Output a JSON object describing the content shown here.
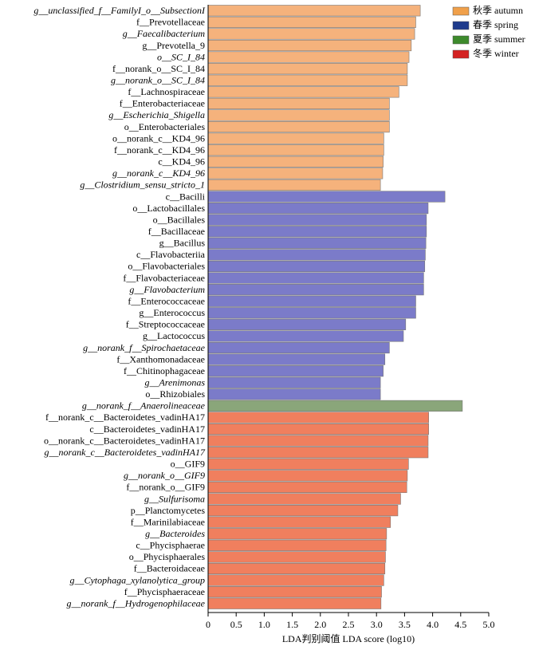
{
  "chart_data": {
    "type": "hbar",
    "xlabel": "LDA判别阈值 LDA score (log10)",
    "xlim": [
      0,
      5
    ],
    "xticks": [
      0,
      0.5,
      {
        "value": 1,
        "label": "1.0"
      },
      1.5,
      {
        "value": 2,
        "label": "2.0"
      },
      2.5,
      {
        "value": 3,
        "label": "3.0"
      },
      3.5,
      {
        "value": 4,
        "label": "4.0"
      },
      4.5,
      {
        "value": 5,
        "label": "5.0"
      }
    ],
    "series": [
      {
        "name": "秋季 autumn",
        "color": "#f5b27c",
        "legend_color": "#f0a04a",
        "categories": [
          "g__unclassified_f__FamilyI_o__SubsectionI",
          "f__Prevotellaceae",
          "g__Faecalibacterium",
          "g__Prevotella_9",
          "o__SC_I_84",
          "f__norank_o__SC_I_84",
          "g__norank_o__SC_I_84",
          "f__Lachnospiraceae",
          "f__Enterobacteriaceae",
          "g__Escherichia_Shigella",
          "o__Enterobacteriales",
          "o__norank_c__KD4_96",
          "f__norank_c__KD4_96",
          "c__KD4_96",
          "g__norank_c__KD4_96",
          "g__Clostridium_sensu_stricto_1"
        ],
        "italic": [
          true,
          false,
          true,
          false,
          true,
          false,
          true,
          false,
          false,
          true,
          false,
          false,
          false,
          false,
          true,
          true
        ],
        "values": [
          3.78,
          3.7,
          3.68,
          3.62,
          3.58,
          3.55,
          3.55,
          3.4,
          3.23,
          3.23,
          3.23,
          3.13,
          3.13,
          3.12,
          3.11,
          3.07
        ]
      },
      {
        "name": "春季 spring",
        "color": "#7b7bc9",
        "legend_color": "#1f3b8c",
        "categories": [
          "c__Bacilli",
          "o__Lactobacillales",
          "o__Bacillales",
          "f__Bacillaceae",
          "g__Bacillus",
          "c__Flavobacteriia",
          "o__Flavobacteriales",
          "f__Flavobacteriaceae",
          "g__Flavobacterium",
          "f__Enterococcaceae",
          "g__Enterococcus",
          "f__Streptococcaceae",
          "g__Lactococcus",
          "g__norank_f__Spirochaetaceae",
          "f__Xanthomonadaceae",
          "f__Chitinophagaceae",
          "g__Arenimonas",
          "o__Rhizobiales"
        ],
        "italic": [
          false,
          false,
          false,
          false,
          false,
          false,
          false,
          false,
          true,
          false,
          false,
          false,
          false,
          true,
          false,
          false,
          true,
          false
        ],
        "values": [
          4.22,
          3.92,
          3.89,
          3.89,
          3.88,
          3.87,
          3.86,
          3.84,
          3.84,
          3.7,
          3.7,
          3.52,
          3.48,
          3.23,
          3.15,
          3.12,
          3.07,
          3.07
        ]
      },
      {
        "name": "夏季 summer",
        "color": "#8aa67a",
        "legend_color": "#3d8a2c",
        "categories": [
          "g__norank_f__Anaerolineaceae"
        ],
        "italic": [
          true
        ],
        "values": [
          4.53
        ]
      },
      {
        "name": "冬季 winter",
        "color": "#f07f5e",
        "legend_color": "#d42222",
        "categories": [
          "f__norank_c__Bacteroidetes_vadinHA17",
          "c__Bacteroidetes_vadinHA17",
          "o__norank_c__Bacteroidetes_vadinHA17",
          "g__norank_c__Bacteroidetes_vadinHA17",
          "o__GIF9",
          "g__norank_o__GIF9",
          "f__norank_o__GIF9",
          "g__Sulfurisoma",
          "p__Planctomycetes",
          "f__Marinilabiaceae",
          "g__Bacteroides",
          "c__Phycisphaerae",
          "o__Phycisphaerales",
          "f__Bacteroidaceae",
          "g__Cytophaga_xylanolytica_group",
          "f__Phycisphaeraceae",
          "g__norank_f__Hydrogenophilaceae"
        ],
        "italic": [
          false,
          false,
          false,
          true,
          false,
          true,
          false,
          true,
          false,
          false,
          true,
          false,
          false,
          false,
          true,
          false,
          true
        ],
        "values": [
          3.93,
          3.93,
          3.92,
          3.92,
          3.57,
          3.55,
          3.54,
          3.43,
          3.38,
          3.25,
          3.18,
          3.17,
          3.16,
          3.15,
          3.13,
          3.09,
          3.08
        ]
      }
    ]
  }
}
